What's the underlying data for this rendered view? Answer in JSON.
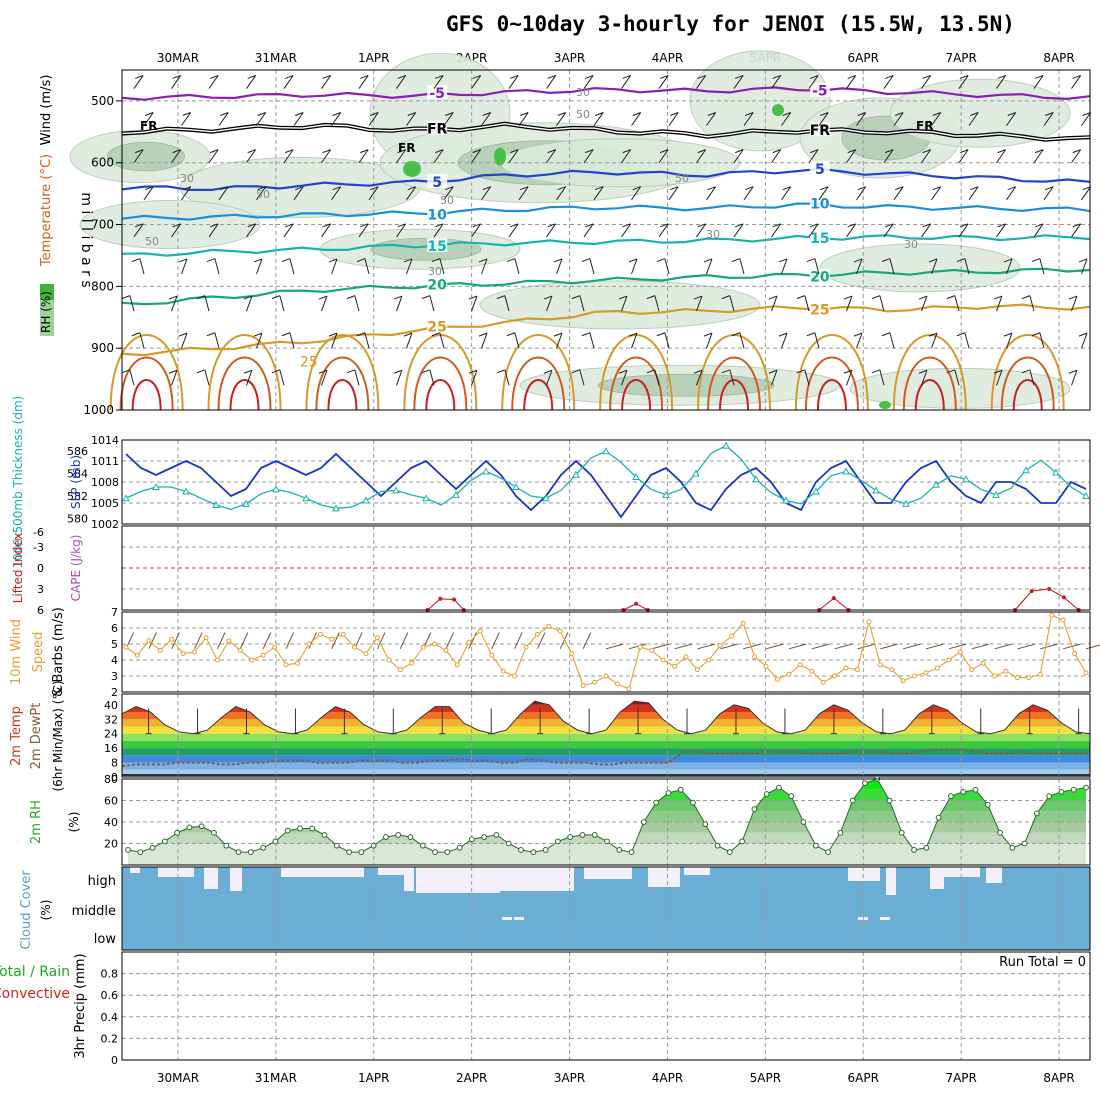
{
  "title": "GFS 0~10day 3-hourly for JENOI (15.5W, 13.5N)",
  "dates": [
    "30MAR",
    "31MAR",
    "1APR",
    "2APR",
    "3APR",
    "4APR",
    "5APR",
    "6APR",
    "7APR",
    "8APR"
  ],
  "colors": {
    "t_neg5": "#8a1fb0",
    "t_fr": "#000000",
    "t_5": "#2244cc",
    "t_10": "#1a8fdc",
    "t_15": "#17b3b3",
    "t_20": "#18a878",
    "t_25": "#d69a2a",
    "t_30": "#d05a20",
    "t_35": "#cc2020",
    "rh": "#9cc29c",
    "slp": "#1a36c8",
    "thick": "#18b4b4",
    "li": "#cc2020",
    "wind10": "#e8a030",
    "barb": "#7a5030",
    "cloud": "#6aaed6",
    "rh2m": "#2fa82f"
  },
  "chart_data": [
    {
      "type": "contour",
      "panel": "upper-air",
      "ylabel": "millibars",
      "series_labels": [
        "Wind (m/s)",
        "Temperature (°C)",
        "RH (%)"
      ],
      "y_ticks": [
        500,
        600,
        700,
        800,
        900,
        1000
      ],
      "ylim": [
        1000,
        450
      ],
      "isotherms": [
        {
          "label": "-5",
          "pressure": [
            495,
            493,
            490,
            492,
            486,
            482,
            484,
            480,
            486,
            491,
            495
          ]
        },
        {
          "label": "FR",
          "pressure": [
            550,
            546,
            540,
            548,
            540,
            548,
            555,
            548,
            550,
            556,
            562
          ]
        },
        {
          "label": "5",
          "pressure": [
            640,
            642,
            636,
            632,
            620,
            615,
            620,
            612,
            618,
            625,
            632
          ]
        },
        {
          "label": "10",
          "pressure": [
            690,
            688,
            684,
            682,
            676,
            672,
            674,
            668,
            672,
            674,
            676
          ]
        },
        {
          "label": "15",
          "pressure": [
            750,
            744,
            740,
            734,
            730,
            728,
            726,
            722,
            720,
            722,
            720
          ]
        },
        {
          "label": "20",
          "pressure": [
            830,
            818,
            806,
            800,
            795,
            790,
            785,
            782,
            778,
            776,
            772
          ]
        },
        {
          "label": "25",
          "pressure": [
            910,
            900,
            888,
            872,
            858,
            842,
            840,
            834,
            838,
            832,
            835
          ]
        }
      ],
      "contour_labels": [
        "-5",
        "FR",
        "5",
        "10",
        "15",
        "20",
        "25",
        "30",
        "50"
      ]
    },
    {
      "type": "line",
      "panel": "slp-thickness",
      "series_labels": [
        "1000-500mb Thickness (dm)",
        "SLP (mb)"
      ],
      "y_ticks_left": [
        580,
        582,
        584,
        586
      ],
      "y_ticks_right": [
        1002,
        1005,
        1008,
        1011,
        1014
      ],
      "ylim_left": [
        579.5,
        587
      ],
      "ylim_right": [
        1002,
        1014
      ],
      "series": [
        {
          "name": "SLP (mb)",
          "axis": "right",
          "values": [
            1012,
            1010,
            1009,
            1010,
            1011,
            1010,
            1008,
            1006,
            1007,
            1010,
            1011,
            1010,
            1009,
            1010,
            1012,
            1010,
            1008,
            1006,
            1008,
            1010,
            1011,
            1009,
            1007,
            1009,
            1011,
            1009,
            1006,
            1004,
            1006,
            1009,
            1011,
            1009,
            1006,
            1003,
            1006,
            1009,
            1010,
            1008,
            1005,
            1004,
            1007,
            1009,
            1010,
            1008,
            1005,
            1004,
            1008,
            1010,
            1011,
            1008,
            1005,
            1005,
            1008,
            1010,
            1011,
            1008,
            1006,
            1005,
            1008,
            1008,
            1007,
            1005,
            1005,
            1008,
            1007
          ]
        },
        {
          "name": "1000-500mb Thickness (dm)",
          "axis": "left",
          "values": [
            581.8,
            582.4,
            582.8,
            582.8,
            582.4,
            581.8,
            581.2,
            580.8,
            581.3,
            582.2,
            582.6,
            582.3,
            581.8,
            581.2,
            580.9,
            581.0,
            581.6,
            582.4,
            582.5,
            582.1,
            581.8,
            581.2,
            582.1,
            583.4,
            584.2,
            583.6,
            582.8,
            582.0,
            581.8,
            582.5,
            583.9,
            585.4,
            586.0,
            585.0,
            583.7,
            582.6,
            582.1,
            582.6,
            584.0,
            585.8,
            586.5,
            585.3,
            583.5,
            582.3,
            581.6,
            581.3,
            582.4,
            583.8,
            584.2,
            583.4,
            582.5,
            581.7,
            581.3,
            581.8,
            583.0,
            583.8,
            583.5,
            582.6,
            582.1,
            582.7,
            584.3,
            585.2,
            584.1,
            582.8,
            582.0
          ]
        }
      ]
    },
    {
      "type": "line",
      "panel": "lifted-index-cape",
      "series_labels": [
        "Lifted Index",
        "CAPE (J/kg)"
      ],
      "y_ticks": [
        -3,
        0,
        3,
        6
      ],
      "y_tick_labels": [
        "-3",
        "0",
        "3",
        "6"
      ],
      "extra_tick_label": "-6",
      "ylim": [
        -6,
        6
      ],
      "li_segments": [
        {
          "x": [
            3.55,
            3.68,
            3.82,
            3.92
          ],
          "values": [
            6.0,
            4.4,
            4.5,
            6.0
          ]
        },
        {
          "x": [
            5.55,
            5.68,
            5.8
          ],
          "values": [
            6.0,
            5.1,
            6.0
          ]
        },
        {
          "x": [
            7.55,
            7.7,
            7.85
          ],
          "values": [
            6.0,
            4.3,
            6.0
          ]
        },
        {
          "x": [
            9.55,
            9.72,
            9.9,
            10.05,
            10.2
          ],
          "values": [
            6.0,
            3.3,
            3.0,
            4.2,
            6.0
          ]
        },
        {
          "x": [
            10.8,
            10.95,
            11.1,
            11.25,
            11.4,
            11.55,
            11.7
          ],
          "values": [
            6.0,
            4.6,
            4.2,
            3.1,
            3.9,
            4.8,
            6.0
          ]
        },
        {
          "x": [
            12.0,
            12.1
          ],
          "values": [
            6.0,
            5.4
          ]
        },
        {
          "x": [
            14.5,
            14.65,
            14.8
          ],
          "values": [
            6.0,
            4.1,
            6.0
          ]
        }
      ]
    },
    {
      "type": "line",
      "panel": "wind10m",
      "series_labels": [
        "10m Wind Speed",
        "& Barbs (m/s)"
      ],
      "y_ticks": [
        2,
        3,
        4,
        5,
        6,
        7
      ],
      "ylim": [
        2,
        7
      ],
      "series": [
        {
          "name": "10m Wind Speed",
          "values": [
            4.8,
            4.3,
            5.2,
            4.6,
            5.3,
            4.4,
            4.5,
            5.4,
            4.0,
            5.2,
            4.6,
            4.0,
            4.3,
            4.8,
            3.7,
            3.8,
            5.0,
            5.6,
            5.3,
            5.6,
            4.8,
            4.4,
            5.4,
            4.0,
            3.4,
            3.8,
            4.8,
            5.0,
            4.6,
            3.7,
            5.1,
            5.8,
            4.3,
            3.3,
            3.0,
            4.8,
            5.6,
            6.1,
            5.8,
            4.4,
            2.4,
            2.6,
            3.0,
            2.5,
            2.2,
            4.8,
            4.6,
            4.0,
            3.6,
            4.2,
            3.4,
            4.0,
            4.9,
            5.5,
            6.3,
            4.2,
            3.6,
            2.8,
            3.1,
            3.7,
            3.3,
            2.6,
            3.0,
            3.5,
            3.4,
            6.4,
            3.7,
            3.4,
            2.7,
            3.0,
            3.2,
            3.5,
            4.0,
            4.5,
            3.4,
            3.8,
            3.0,
            3.3,
            2.9,
            2.9,
            3.1,
            6.8,
            6.5,
            4.4,
            3.2
          ]
        }
      ]
    },
    {
      "type": "area",
      "panel": "temp2m",
      "series_labels": [
        "2m Temp",
        "2m DewPt",
        "(6hr Min/Max) (°C)"
      ],
      "y_ticks": [
        0,
        8,
        16,
        24,
        32,
        40
      ],
      "ylim": [
        0,
        46
      ],
      "series": [
        {
          "name": "2m Temp",
          "values": [
            35,
            39,
            36,
            29,
            25,
            24,
            26,
            33,
            39,
            36,
            29,
            25,
            24,
            26,
            33,
            39,
            36,
            29,
            25,
            24,
            26,
            33,
            39,
            39,
            30,
            26,
            24,
            26,
            35,
            42,
            40,
            31,
            26,
            24,
            26,
            36,
            42,
            41,
            32,
            26,
            24,
            26,
            35,
            40,
            38,
            30,
            25,
            24,
            26,
            35,
            40,
            37,
            30,
            25,
            24,
            26,
            35,
            40,
            37,
            30,
            25,
            24,
            26,
            35,
            40,
            37,
            30,
            25,
            24
          ]
        },
        {
          "name": "2m DewPt",
          "values": [
            6,
            7,
            7,
            7,
            8,
            8,
            8,
            7,
            7,
            8,
            8,
            9,
            9,
            9,
            8,
            8,
            8,
            9,
            9,
            9,
            8,
            8,
            9,
            9,
            10,
            9,
            9,
            8,
            8,
            10,
            9,
            8,
            8,
            8,
            7,
            7,
            8,
            8,
            8,
            8,
            14,
            14,
            13,
            13,
            13,
            13,
            14,
            14,
            14,
            13,
            13,
            13,
            14,
            14,
            14,
            13,
            13,
            14,
            15,
            15,
            15,
            14,
            13,
            13,
            14,
            13,
            13,
            13,
            13,
            13
          ]
        }
      ]
    },
    {
      "type": "area",
      "panel": "rh2m",
      "series_labels": [
        "2m RH",
        "(%)"
      ],
      "y_ticks": [
        20,
        40,
        60,
        80
      ],
      "ylim": [
        0,
        80
      ],
      "series": [
        {
          "name": "2m RH",
          "values": [
            14,
            12,
            16,
            22,
            30,
            35,
            36,
            30,
            18,
            12,
            12,
            16,
            22,
            32,
            34,
            34,
            28,
            18,
            12,
            12,
            18,
            26,
            28,
            26,
            18,
            12,
            12,
            16,
            24,
            26,
            28,
            20,
            14,
            12,
            14,
            22,
            26,
            28,
            28,
            22,
            14,
            12,
            40,
            58,
            67,
            70,
            58,
            38,
            18,
            12,
            22,
            52,
            66,
            72,
            64,
            40,
            18,
            12,
            30,
            60,
            76,
            80,
            60,
            30,
            14,
            16,
            44,
            64,
            68,
            70,
            56,
            30,
            16,
            20,
            48,
            64,
            68,
            70,
            72
          ]
        }
      ]
    },
    {
      "type": "bar",
      "panel": "cloud-cover",
      "series_labels": [
        "Cloud Cover",
        "(%)"
      ],
      "y_tick_labels": [
        "high",
        "middle",
        "low"
      ],
      "ylim": [
        0,
        100
      ]
    },
    {
      "type": "bar",
      "panel": "precip",
      "series_labels": [
        "3hr Precip (mm)",
        "Total / Rain",
        "Convective"
      ],
      "y_ticks": [
        0,
        0.2,
        0.4,
        0.6,
        0.8
      ],
      "y_tick_labels": [
        "0",
        "0.2",
        "0.4",
        "0.6",
        "0.8"
      ],
      "ylim": [
        0,
        1
      ],
      "annotation": "Run Total = 0",
      "values": []
    }
  ]
}
